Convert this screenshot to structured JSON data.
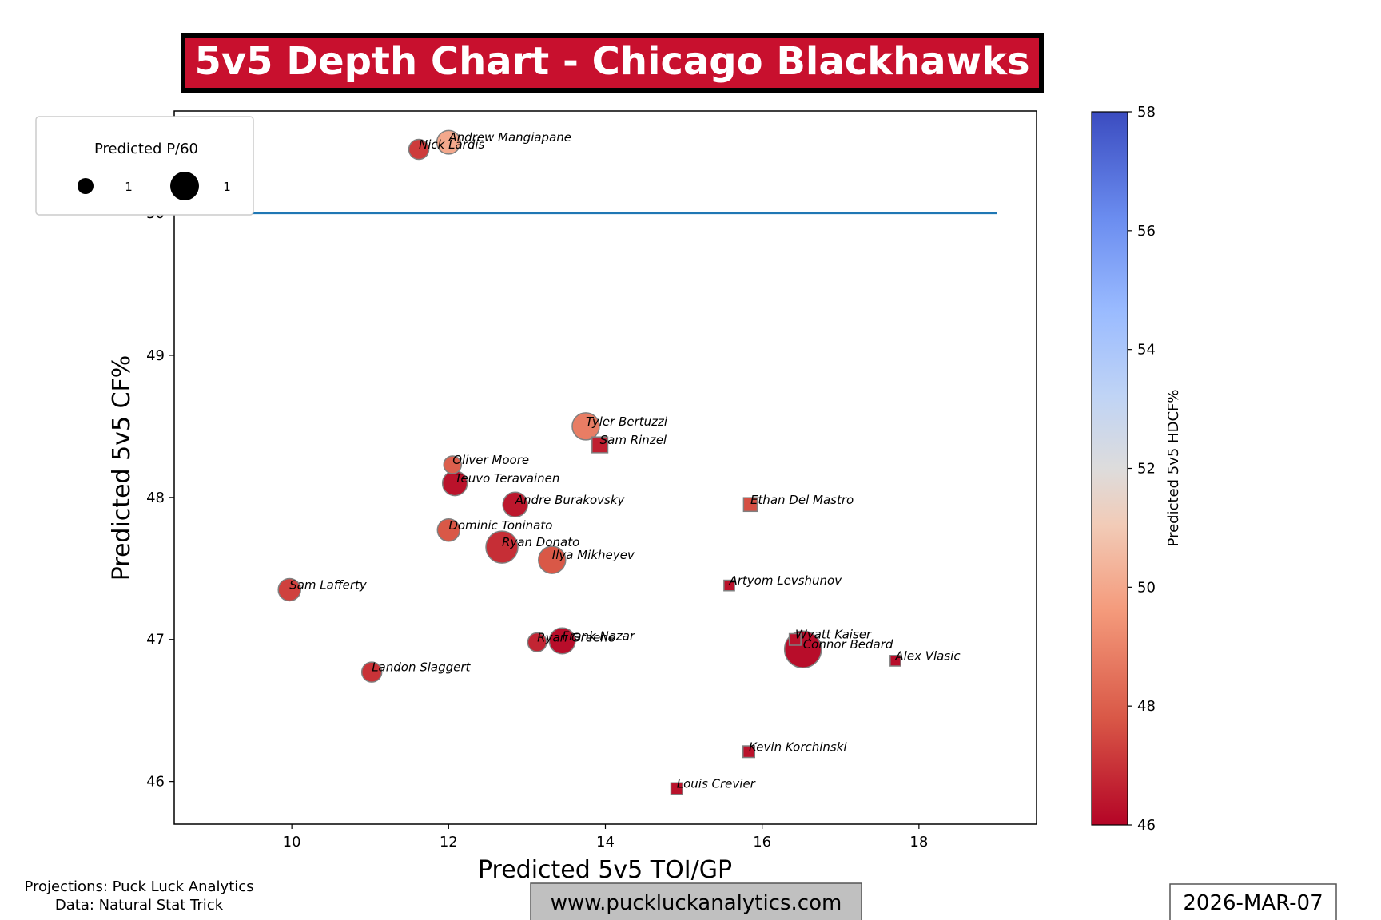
{
  "chart_data": {
    "type": "scatter",
    "title": "5v5 Depth Chart - Chicago Blackhawks",
    "xlabel": "Predicted 5v5 TOI/GP",
    "ylabel": "Predicted 5v5 CF%",
    "xlim": [
      8.5,
      19.5
    ],
    "ylim": [
      45.7,
      50.72
    ],
    "xticks": [
      10,
      12,
      14,
      16,
      18
    ],
    "yticks": [
      46,
      47,
      48,
      49,
      50
    ],
    "reference_line": {
      "y": 50,
      "x_from": 8.5,
      "x_to": 19,
      "color": "#1f77b4"
    },
    "colorbar": {
      "label": "Predicted 5v5 HDCF%",
      "min": 46,
      "max": 58,
      "ticks": [
        46,
        48,
        50,
        52,
        54,
        56,
        58
      ],
      "colormap": "coolwarm_r"
    },
    "legend": {
      "title": "Predicted P/60",
      "entries": [
        {
          "label": "1",
          "marker": "small-circle"
        },
        {
          "label": "1",
          "marker": "large-circle"
        }
      ],
      "placement": "top-left"
    },
    "points": [
      {
        "name": "Andrew Mangiapane",
        "toi": 12.0,
        "cf": 50.5,
        "hdcf": 50.0,
        "p60": 1.3,
        "pos": "F"
      },
      {
        "name": "Nick Lardis",
        "toi": 11.62,
        "cf": 50.45,
        "hdcf": 47.2,
        "p60": 1.0,
        "pos": "F"
      },
      {
        "name": "Tyler Bertuzzi",
        "toi": 13.75,
        "cf": 48.5,
        "hdcf": 48.8,
        "p60": 1.6,
        "pos": "F"
      },
      {
        "name": "Sam Rinzel",
        "toi": 13.93,
        "cf": 48.37,
        "hdcf": 46.6,
        "p60": 0.9,
        "pos": "D"
      },
      {
        "name": "Oliver Moore",
        "toi": 12.05,
        "cf": 48.23,
        "hdcf": 48.0,
        "p60": 0.8,
        "pos": "F"
      },
      {
        "name": "Teuvo Teravainen",
        "toi": 12.08,
        "cf": 48.1,
        "hdcf": 46.3,
        "p60": 1.4,
        "pos": "F"
      },
      {
        "name": "Andre Burakovsky",
        "toi": 12.85,
        "cf": 47.95,
        "hdcf": 46.4,
        "p60": 1.4,
        "pos": "F"
      },
      {
        "name": "Ethan Del Mastro",
        "toi": 15.85,
        "cf": 47.95,
        "hdcf": 47.6,
        "p60": 0.7,
        "pos": "D"
      },
      {
        "name": "Dominic Toninato",
        "toi": 12.0,
        "cf": 47.77,
        "hdcf": 47.8,
        "p60": 1.2,
        "pos": "F"
      },
      {
        "name": "Ryan Donato",
        "toi": 12.68,
        "cf": 47.65,
        "hdcf": 46.9,
        "p60": 2.0,
        "pos": "F"
      },
      {
        "name": "Ilya Mikheyev",
        "toi": 13.32,
        "cf": 47.56,
        "hdcf": 47.8,
        "p60": 1.6,
        "pos": "F"
      },
      {
        "name": "Sam Lafferty",
        "toi": 9.97,
        "cf": 47.35,
        "hdcf": 47.3,
        "p60": 1.2,
        "pos": "F"
      },
      {
        "name": "Artyom Levshunov",
        "toi": 15.58,
        "cf": 47.38,
        "hdcf": 46.3,
        "p60": 0.4,
        "pos": "D"
      },
      {
        "name": "Ryan Greene",
        "toi": 13.13,
        "cf": 46.98,
        "hdcf": 46.7,
        "p60": 0.9,
        "pos": "F"
      },
      {
        "name": "Frank Nazar",
        "toi": 13.45,
        "cf": 46.99,
        "hdcf": 46.2,
        "p60": 1.5,
        "pos": "F"
      },
      {
        "name": "Wyatt Kaiser",
        "toi": 16.42,
        "cf": 47.0,
        "hdcf": 46.3,
        "p60": 0.5,
        "pos": "D"
      },
      {
        "name": "Connor Bedard",
        "toi": 16.52,
        "cf": 46.93,
        "hdcf": 46.2,
        "p60": 2.4,
        "pos": "F"
      },
      {
        "name": "Alex Vlasic",
        "toi": 17.7,
        "cf": 46.85,
        "hdcf": 46.2,
        "p60": 0.4,
        "pos": "D"
      },
      {
        "name": "Landon Slaggert",
        "toi": 11.02,
        "cf": 46.77,
        "hdcf": 47.0,
        "p60": 1.0,
        "pos": "F"
      },
      {
        "name": "Kevin Korchinski",
        "toi": 15.83,
        "cf": 46.21,
        "hdcf": 46.3,
        "p60": 0.5,
        "pos": "D"
      },
      {
        "name": "Louis Crevier",
        "toi": 14.91,
        "cf": 45.95,
        "hdcf": 46.3,
        "p60": 0.5,
        "pos": "D"
      }
    ]
  },
  "footer": {
    "source_line1": "Projections: Puck Luck Analytics",
    "source_line2": "Data: Natural Stat Trick",
    "website": "www.puckluckanalytics.com",
    "date": "2026-MAR-07"
  },
  "colors": {
    "title_bg": "#c8102e",
    "title_border": "#000000",
    "title_text": "#ffffff",
    "marker_edge": "#808080",
    "website_bg": "#c0c0c0"
  }
}
